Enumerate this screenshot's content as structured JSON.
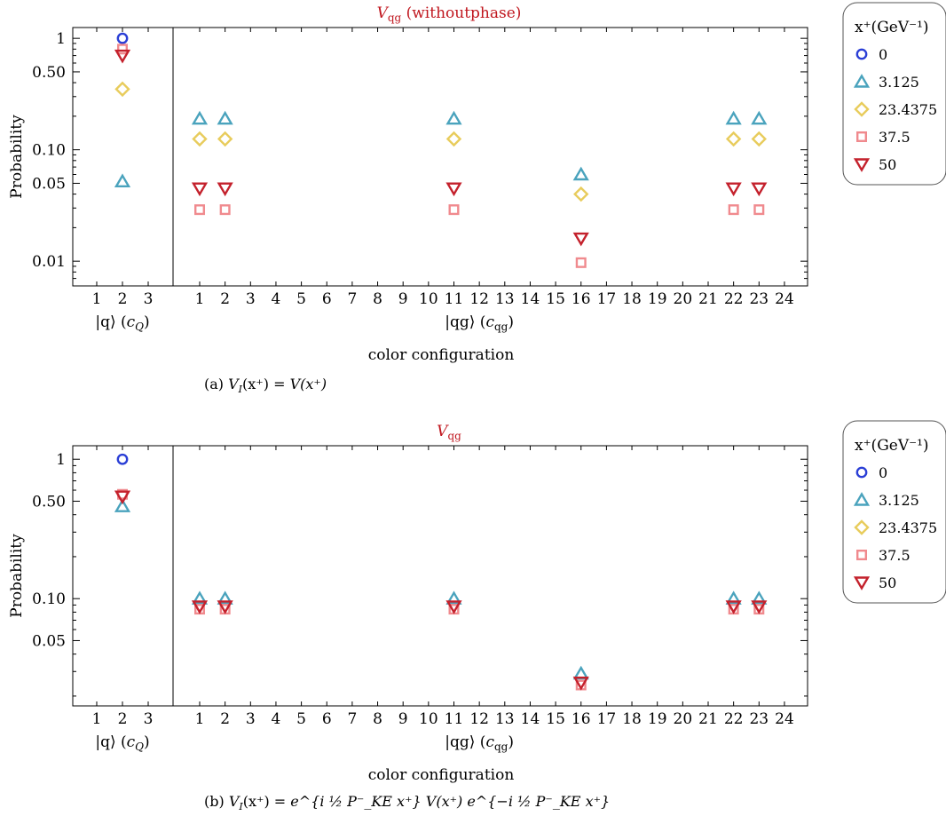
{
  "chart_data": [
    {
      "type": "scatter",
      "title_main": "V",
      "title_sub": "qg",
      "title_suffix": " (withoutphase)",
      "title_color": "#c0161e",
      "ylabel": "Probability",
      "yscale": "log",
      "ylim": [
        0.006,
        1.25
      ],
      "yticks": [
        {
          "value": 1,
          "label": "1"
        },
        {
          "value": 0.5,
          "label": "0.50"
        },
        {
          "value": 0.1,
          "label": "0.10"
        },
        {
          "value": 0.05,
          "label": "0.05"
        },
        {
          "value": 0.01,
          "label": "0.01"
        }
      ],
      "q_panel": {
        "ticks": [
          "1",
          "2",
          "3"
        ],
        "label_ket": "|q⟩",
        "label_c": "c",
        "label_c_sub": "Q"
      },
      "qg_panel": {
        "ticks": [
          "1",
          "2",
          "3",
          "4",
          "5",
          "6",
          "7",
          "8",
          "9",
          "10",
          "11",
          "12",
          "13",
          "14",
          "15",
          "16",
          "17",
          "18",
          "19",
          "20",
          "21",
          "22",
          "23",
          "24"
        ],
        "label_ket": "|qg⟩",
        "label_c": "c",
        "label_c_sub": "qg"
      },
      "xlabel": "color configuration",
      "caption_prefix": "(a)",
      "caption_lhs": "V",
      "caption_lhs_sub": "I",
      "caption_arg": "(x⁺) = ",
      "caption_rhs": "V(x⁺)",
      "legend": {
        "title": "x⁺(GeV⁻¹)",
        "entries": [
          "0",
          "3.125",
          "23.4375",
          "37.5",
          "50"
        ]
      },
      "series": [
        {
          "name": "0",
          "marker": "circle",
          "color": "#2b3fd6",
          "q": [
            [
              2,
              1.0
            ]
          ],
          "qg": []
        },
        {
          "name": "3.125",
          "marker": "triangle-up",
          "color": "#4aa3bd",
          "q": [
            [
              2,
              0.052
            ]
          ],
          "qg": [
            [
              1,
              0.19
            ],
            [
              2,
              0.19
            ],
            [
              11,
              0.19
            ],
            [
              16,
              0.06
            ],
            [
              22,
              0.19
            ],
            [
              23,
              0.19
            ]
          ]
        },
        {
          "name": "23.4375",
          "marker": "diamond",
          "color": "#e8cc5c",
          "q": [
            [
              2,
              0.35
            ]
          ],
          "qg": [
            [
              1,
              0.125
            ],
            [
              2,
              0.125
            ],
            [
              11,
              0.125
            ],
            [
              16,
              0.04
            ],
            [
              22,
              0.125
            ],
            [
              23,
              0.125
            ]
          ]
        },
        {
          "name": "37.5",
          "marker": "square",
          "color": "#f08a8e",
          "q": [
            [
              2,
              0.8
            ]
          ],
          "qg": [
            [
              1,
              0.029
            ],
            [
              2,
              0.029
            ],
            [
              11,
              0.029
            ],
            [
              16,
              0.0097
            ],
            [
              22,
              0.029
            ],
            [
              23,
              0.029
            ]
          ]
        },
        {
          "name": "50",
          "marker": "triangle-down",
          "color": "#c4212c",
          "q": [
            [
              2,
              0.7
            ]
          ],
          "qg": [
            [
              1,
              0.045
            ],
            [
              2,
              0.045
            ],
            [
              11,
              0.045
            ],
            [
              16,
              0.016
            ],
            [
              22,
              0.045
            ],
            [
              23,
              0.045
            ]
          ]
        }
      ]
    },
    {
      "type": "scatter",
      "title_main": "V",
      "title_sub": "qg",
      "title_suffix": "",
      "title_color": "#c0161e",
      "ylabel": "Probability",
      "yscale": "log",
      "ylim": [
        0.017,
        1.25
      ],
      "yticks": [
        {
          "value": 1,
          "label": "1"
        },
        {
          "value": 0.5,
          "label": "0.50"
        },
        {
          "value": 0.1,
          "label": "0.10"
        },
        {
          "value": 0.05,
          "label": "0.05"
        }
      ],
      "q_panel": {
        "ticks": [
          "1",
          "2",
          "3"
        ],
        "label_ket": "|q⟩",
        "label_c": "c",
        "label_c_sub": "Q"
      },
      "qg_panel": {
        "ticks": [
          "1",
          "2",
          "3",
          "4",
          "5",
          "6",
          "7",
          "8",
          "9",
          "10",
          "11",
          "12",
          "13",
          "14",
          "15",
          "16",
          "17",
          "18",
          "19",
          "20",
          "21",
          "22",
          "23",
          "24"
        ],
        "label_ket": "|qg⟩",
        "label_c": "c",
        "label_c_sub": "qg"
      },
      "xlabel": "color configuration",
      "caption_prefix": "(b)",
      "caption_lhs": "V",
      "caption_lhs_sub": "I",
      "caption_arg": "(x⁺) = ",
      "caption_rhs": "e^{i ½ P⁻_KE x⁺} V(x⁺) e^{−i ½ P⁻_KE x⁺}",
      "legend": {
        "title": "x⁺(GeV⁻¹)",
        "entries": [
          "0",
          "3.125",
          "23.4375",
          "37.5",
          "50"
        ]
      },
      "series": [
        {
          "name": "0",
          "marker": "circle",
          "color": "#2b3fd6",
          "q": [
            [
              2,
              1.0
            ]
          ],
          "qg": []
        },
        {
          "name": "3.125",
          "marker": "triangle-up",
          "color": "#4aa3bd",
          "q": [
            [
              2,
              0.46
            ]
          ],
          "qg": [
            [
              1,
              0.1
            ],
            [
              2,
              0.1
            ],
            [
              11,
              0.1
            ],
            [
              16,
              0.029
            ],
            [
              22,
              0.1
            ],
            [
              23,
              0.1
            ]
          ]
        },
        {
          "name": "23.4375",
          "marker": "diamond",
          "color": "#e8cc5c",
          "q": [],
          "qg": []
        },
        {
          "name": "37.5",
          "marker": "square",
          "color": "#f08a8e",
          "q": [
            [
              2,
              0.56
            ]
          ],
          "qg": [
            [
              1,
              0.084
            ],
            [
              2,
              0.084
            ],
            [
              11,
              0.084
            ],
            [
              16,
              0.024
            ],
            [
              22,
              0.084
            ],
            [
              23,
              0.084
            ]
          ]
        },
        {
          "name": "50",
          "marker": "triangle-down",
          "color": "#c4212c",
          "q": [
            [
              2,
              0.54
            ]
          ],
          "qg": [
            [
              1,
              0.088
            ],
            [
              2,
              0.088
            ],
            [
              11,
              0.088
            ],
            [
              16,
              0.025
            ],
            [
              22,
              0.088
            ],
            [
              23,
              0.088
            ]
          ]
        }
      ]
    }
  ]
}
